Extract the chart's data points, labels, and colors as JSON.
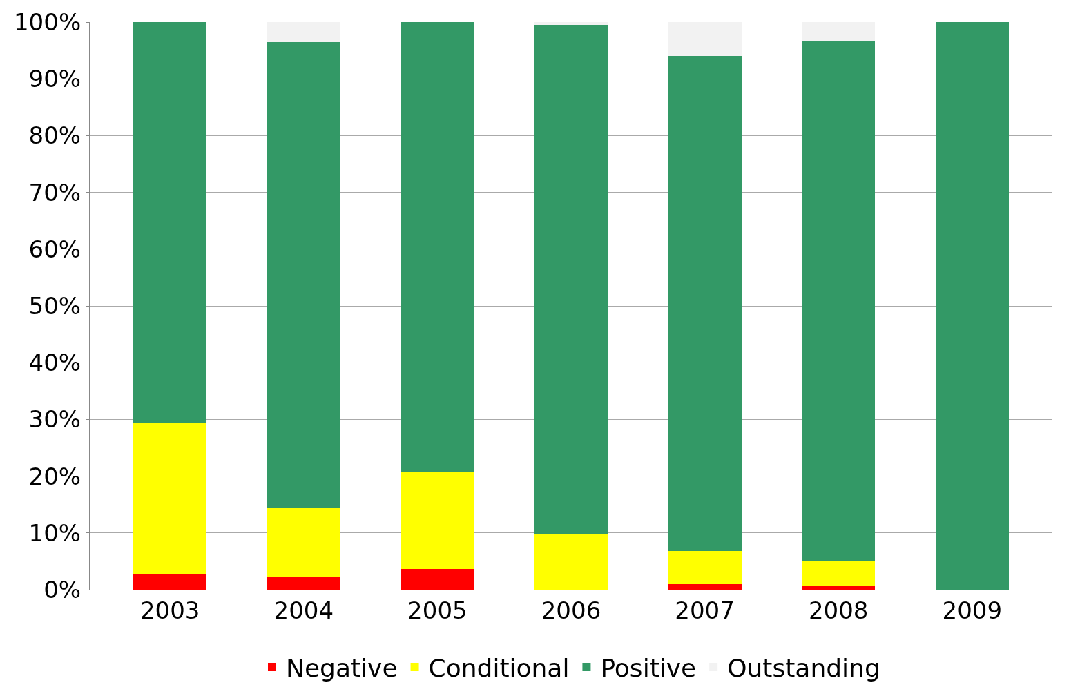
{
  "chart_data": {
    "type": "bar",
    "stacked": true,
    "categories": [
      "2003",
      "2004",
      "2005",
      "2006",
      "2007",
      "2008",
      "2009"
    ],
    "series": [
      {
        "name": "Negative",
        "color": "#ff0000",
        "values": [
          2.7,
          2.3,
          3.6,
          0,
          1,
          0.6,
          0
        ]
      },
      {
        "name": "Conditional",
        "color": "#ffff00",
        "values": [
          26.8,
          12,
          17.1,
          9.7,
          5.8,
          4.5,
          0
        ]
      },
      {
        "name": "Positive",
        "color": "#339966",
        "values": [
          70.5,
          82.2,
          79.3,
          89.8,
          87.2,
          91.6,
          100
        ]
      },
      {
        "name": "Outstanding",
        "color": "#f2f2f2",
        "values": [
          0,
          3.5,
          0,
          0.5,
          6,
          3.3,
          0
        ]
      }
    ],
    "ylim": [
      0,
      100
    ],
    "yticks": [
      {
        "value": 0,
        "label": "0%"
      },
      {
        "value": 10,
        "label": "10%"
      },
      {
        "value": 20,
        "label": "20%"
      },
      {
        "value": 30,
        "label": "30%"
      },
      {
        "value": 40,
        "label": "40%"
      },
      {
        "value": 50,
        "label": "50%"
      },
      {
        "value": 60,
        "label": "60%"
      },
      {
        "value": 70,
        "label": "70%"
      },
      {
        "value": 80,
        "label": "80%"
      },
      {
        "value": 90,
        "label": "90%"
      },
      {
        "value": 100,
        "label": "100%"
      }
    ],
    "grid": "y",
    "legend": "bottom"
  }
}
